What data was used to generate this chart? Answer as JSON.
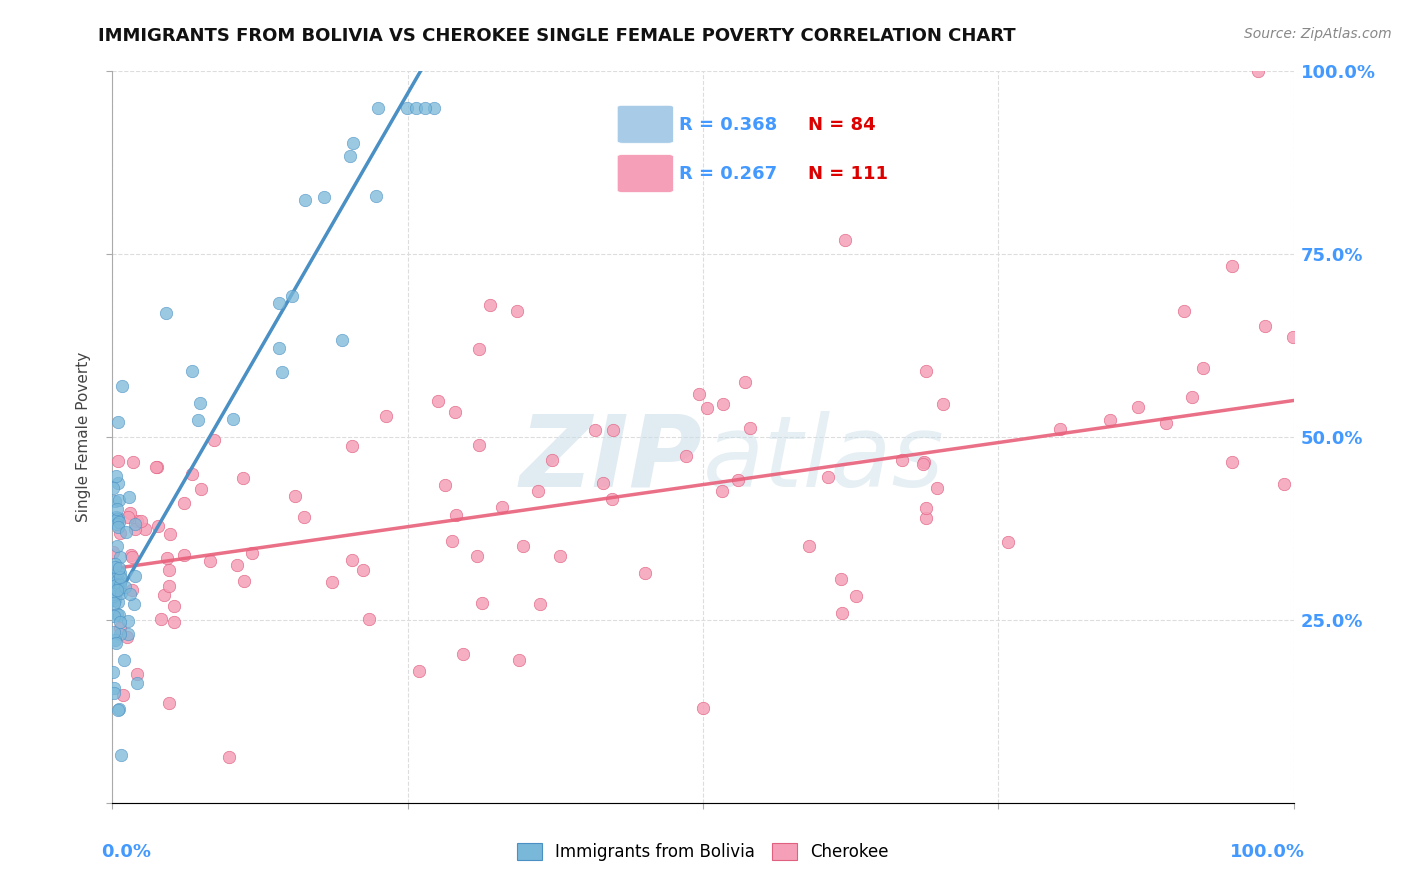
{
  "title": "IMMIGRANTS FROM BOLIVIA VS CHEROKEE SINGLE FEMALE POVERTY CORRELATION CHART",
  "source": "Source: ZipAtlas.com",
  "ylabel": "Single Female Poverty",
  "bolivia_color": "#7ab8d9",
  "bolivia_edge_color": "#4a90c4",
  "cherokee_color": "#f5a0b8",
  "cherokee_edge_color": "#e06080",
  "bolivia_line_color": "#4a90c4",
  "cherokee_line_color": "#e8607a",
  "legend_box_color": "#a8cce8",
  "legend_cherokee_color": "#f5a0b8",
  "r_color": "#4499ff",
  "n_color": "#dd0000",
  "watermark_color": "#d8e8f0",
  "grid_color": "#dddddd",
  "background_color": "#ffffff",
  "bolivia_R": 0.368,
  "bolivia_N": 84,
  "cherokee_R": 0.267,
  "cherokee_N": 111,
  "bolivia_line_intercept": 0.27,
  "bolivia_line_slope": 2.8,
  "cherokee_line_intercept": 0.32,
  "cherokee_line_slope": 0.23
}
